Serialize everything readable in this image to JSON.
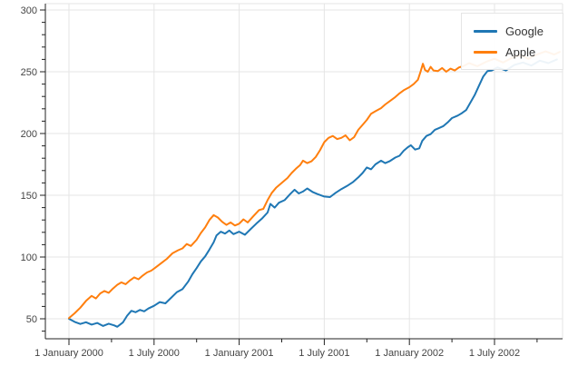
{
  "chart_data": {
    "type": "line",
    "title": "",
    "xlabel": "",
    "ylabel": "",
    "x_unit": "months since 2000-01-01",
    "xlim": [
      -1.66,
      34.8
    ],
    "ylim": [
      34,
      302
    ],
    "grid": true,
    "background": "#ffffff",
    "grid_color": "#e5e5e5",
    "axis_line_color": "#222222",
    "tick_label_color": "#444444",
    "x_major_ticks": [
      {
        "m": 0,
        "label": "1 January 2000"
      },
      {
        "m": 6,
        "label": "1 July 2000"
      },
      {
        "m": 12,
        "label": "1 January 2001"
      },
      {
        "m": 18,
        "label": "1 July 2001"
      },
      {
        "m": 24,
        "label": "1 January 2002"
      },
      {
        "m": 30,
        "label": "1 July 2002"
      }
    ],
    "x_minor_ticks_m": [
      -3,
      3,
      9,
      15,
      21,
      27,
      33
    ],
    "y_major_ticks": [
      50,
      100,
      150,
      200,
      250,
      300
    ],
    "y_minor_ticks": [
      40,
      60,
      70,
      80,
      90,
      110,
      120,
      130,
      140,
      160,
      170,
      180,
      190,
      210,
      220,
      230,
      240,
      260,
      270,
      280,
      290
    ],
    "legend": {
      "position": "top_right",
      "items": [
        {
          "label": "Google",
          "color": "#1f77b4"
        },
        {
          "label": "Apple",
          "color": "#ff7f0e"
        }
      ]
    },
    "series": [
      {
        "name": "Google",
        "color": "#1f77b4",
        "points": [
          [
            0,
            50
          ],
          [
            0.4,
            47.5
          ],
          [
            0.8,
            45.8
          ],
          [
            1.2,
            47.2
          ],
          [
            1.6,
            45.3
          ],
          [
            2,
            46.6
          ],
          [
            2.4,
            44.2
          ],
          [
            2.8,
            46
          ],
          [
            3.2,
            44.6
          ],
          [
            3.4,
            43.5
          ],
          [
            3.8,
            47
          ],
          [
            4.1,
            52.5
          ],
          [
            4.4,
            56.5
          ],
          [
            4.7,
            55.3
          ],
          [
            5,
            57.2
          ],
          [
            5.3,
            56
          ],
          [
            5.6,
            58.3
          ],
          [
            6,
            60.5
          ],
          [
            6.4,
            63.5
          ],
          [
            6.8,
            62.5
          ],
          [
            7.2,
            67
          ],
          [
            7.6,
            71.5
          ],
          [
            8,
            74
          ],
          [
            8.4,
            80
          ],
          [
            8.7,
            86
          ],
          [
            9,
            91
          ],
          [
            9.3,
            96.5
          ],
          [
            9.6,
            100.5
          ],
          [
            9.9,
            106
          ],
          [
            10.2,
            112
          ],
          [
            10.4,
            117.5
          ],
          [
            10.7,
            120.5
          ],
          [
            11,
            119
          ],
          [
            11.3,
            121.5
          ],
          [
            11.6,
            118.5
          ],
          [
            12,
            120.5
          ],
          [
            12.4,
            118
          ],
          [
            12.8,
            122.5
          ],
          [
            13.2,
            127
          ],
          [
            13.6,
            131
          ],
          [
            14,
            136
          ],
          [
            14.2,
            143
          ],
          [
            14.5,
            140
          ],
          [
            14.8,
            144
          ],
          [
            15.2,
            146
          ],
          [
            15.6,
            151
          ],
          [
            15.9,
            154.5
          ],
          [
            16.2,
            151.5
          ],
          [
            16.5,
            153
          ],
          [
            16.8,
            155.5
          ],
          [
            17.2,
            152.5
          ],
          [
            17.5,
            151
          ],
          [
            18,
            149
          ],
          [
            18.4,
            148.5
          ],
          [
            18.8,
            152
          ],
          [
            19.2,
            155
          ],
          [
            19.6,
            157.5
          ],
          [
            20,
            160.5
          ],
          [
            20.4,
            164.5
          ],
          [
            20.7,
            168
          ],
          [
            21,
            172.5
          ],
          [
            21.3,
            171
          ],
          [
            21.6,
            175
          ],
          [
            22,
            178
          ],
          [
            22.3,
            176
          ],
          [
            22.6,
            177.5
          ],
          [
            23,
            180.5
          ],
          [
            23.3,
            182
          ],
          [
            23.6,
            186
          ],
          [
            23.9,
            189
          ],
          [
            24.1,
            190.5
          ],
          [
            24.4,
            187
          ],
          [
            24.7,
            188
          ],
          [
            24.9,
            194
          ],
          [
            25.2,
            198
          ],
          [
            25.5,
            199.5
          ],
          [
            25.8,
            203
          ],
          [
            26.1,
            204.5
          ],
          [
            26.4,
            206
          ],
          [
            26.7,
            209
          ],
          [
            27,
            212.5
          ],
          [
            27.4,
            214.5
          ],
          [
            27.7,
            216.5
          ],
          [
            28,
            219
          ],
          [
            28.3,
            225
          ],
          [
            28.6,
            231
          ],
          [
            28.9,
            238.5
          ],
          [
            29.2,
            246
          ],
          [
            29.5,
            250.5
          ],
          [
            29.8,
            251
          ],
          [
            30.2,
            253.5
          ],
          [
            30.8,
            251
          ],
          [
            31.4,
            255.5
          ],
          [
            32,
            257.5
          ],
          [
            32.6,
            255
          ],
          [
            33.2,
            259
          ],
          [
            33.8,
            257
          ],
          [
            34.4,
            260
          ]
        ]
      },
      {
        "name": "Apple",
        "color": "#ff7f0e",
        "points": [
          [
            0,
            50.5
          ],
          [
            0.4,
            54.5
          ],
          [
            0.8,
            59
          ],
          [
            1.2,
            64.5
          ],
          [
            1.6,
            68.5
          ],
          [
            1.9,
            66.5
          ],
          [
            2.2,
            70.5
          ],
          [
            2.5,
            72.5
          ],
          [
            2.8,
            71
          ],
          [
            3.1,
            74.5
          ],
          [
            3.4,
            77.5
          ],
          [
            3.7,
            79.5
          ],
          [
            4,
            78
          ],
          [
            4.3,
            81
          ],
          [
            4.6,
            83.5
          ],
          [
            4.9,
            82
          ],
          [
            5.2,
            85
          ],
          [
            5.5,
            87.5
          ],
          [
            5.8,
            89
          ],
          [
            6.1,
            91.5
          ],
          [
            6.5,
            95
          ],
          [
            6.9,
            98.5
          ],
          [
            7.3,
            103
          ],
          [
            7.7,
            105.5
          ],
          [
            8,
            107
          ],
          [
            8.3,
            110.5
          ],
          [
            8.6,
            109
          ],
          [
            9,
            114
          ],
          [
            9.3,
            119.5
          ],
          [
            9.6,
            124
          ],
          [
            9.9,
            130
          ],
          [
            10.2,
            134
          ],
          [
            10.5,
            132
          ],
          [
            10.8,
            128.5
          ],
          [
            11.1,
            126
          ],
          [
            11.4,
            128
          ],
          [
            11.7,
            125.5
          ],
          [
            12,
            127
          ],
          [
            12.3,
            130.5
          ],
          [
            12.6,
            128
          ],
          [
            13,
            133
          ],
          [
            13.4,
            138
          ],
          [
            13.7,
            139
          ],
          [
            14,
            146
          ],
          [
            14.3,
            152
          ],
          [
            14.6,
            156
          ],
          [
            15,
            160
          ],
          [
            15.4,
            164
          ],
          [
            15.7,
            168
          ],
          [
            16,
            171.5
          ],
          [
            16.3,
            174.5
          ],
          [
            16.5,
            178
          ],
          [
            16.8,
            176
          ],
          [
            17.1,
            177.5
          ],
          [
            17.4,
            181
          ],
          [
            17.7,
            186.5
          ],
          [
            18,
            193
          ],
          [
            18.3,
            196.5
          ],
          [
            18.6,
            198
          ],
          [
            18.9,
            195.5
          ],
          [
            19.2,
            196.5
          ],
          [
            19.5,
            198.5
          ],
          [
            19.8,
            194.5
          ],
          [
            20.1,
            197
          ],
          [
            20.4,
            203
          ],
          [
            20.7,
            207
          ],
          [
            21,
            211
          ],
          [
            21.3,
            216
          ],
          [
            21.6,
            218
          ],
          [
            22,
            220.5
          ],
          [
            22.3,
            223.5
          ],
          [
            22.6,
            226
          ],
          [
            23,
            229.5
          ],
          [
            23.3,
            232.5
          ],
          [
            23.6,
            235
          ],
          [
            24,
            237.5
          ],
          [
            24.3,
            240
          ],
          [
            24.6,
            243.5
          ],
          [
            24.8,
            250.5
          ],
          [
            24.95,
            256.5
          ],
          [
            25.1,
            251.5
          ],
          [
            25.3,
            250
          ],
          [
            25.5,
            254
          ],
          [
            25.7,
            251
          ],
          [
            26,
            250.5
          ],
          [
            26.3,
            253
          ],
          [
            26.6,
            250
          ],
          [
            26.9,
            252.5
          ],
          [
            27.2,
            251
          ],
          [
            27.5,
            253.5
          ],
          [
            27.8,
            254.5
          ],
          [
            28.2,
            257
          ],
          [
            28.8,
            254.5
          ],
          [
            29.4,
            258
          ],
          [
            30,
            260.5
          ],
          [
            30.6,
            257.5
          ],
          [
            31.2,
            261
          ],
          [
            31.8,
            263.5
          ],
          [
            32.4,
            260.5
          ],
          [
            33,
            264
          ],
          [
            33.6,
            266.5
          ],
          [
            34.2,
            264
          ],
          [
            34.6,
            266
          ]
        ]
      }
    ]
  }
}
